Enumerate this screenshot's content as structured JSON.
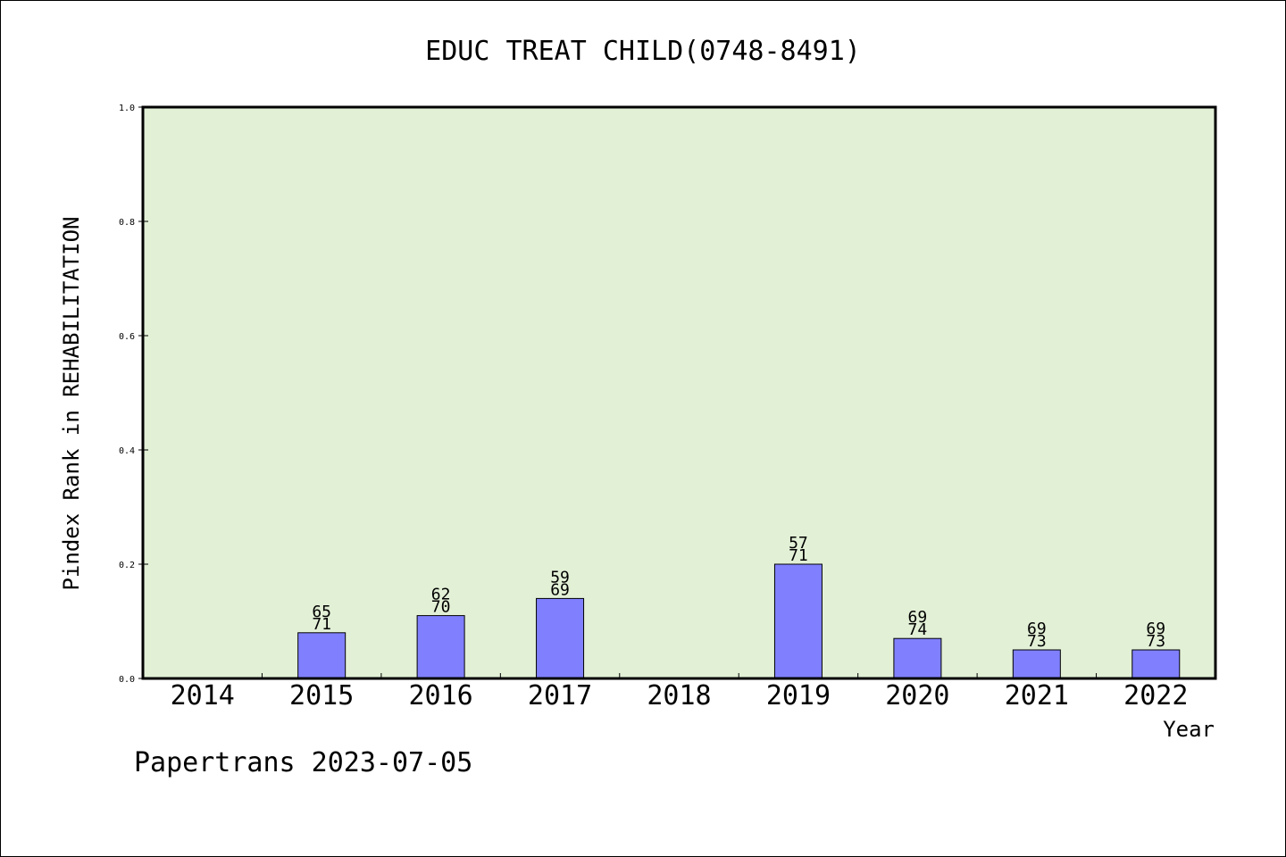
{
  "chart_data": {
    "type": "bar",
    "title": "EDUC TREAT CHILD(0748-8491)",
    "xlabel": "Year",
    "ylabel": "Pindex Rank in REHABILITATION",
    "ylim": [
      0,
      1.0
    ],
    "yticks": [
      "0.0",
      "0.2",
      "0.4",
      "0.6",
      "0.8",
      "1.0"
    ],
    "grid": false,
    "categories": [
      "2014",
      "2015",
      "2016",
      "2017",
      "2018",
      "2019",
      "2020",
      "2021",
      "2022"
    ],
    "values": [
      0,
      0.08,
      0.11,
      0.14,
      0,
      0.2,
      0.07,
      0.05,
      0.05
    ],
    "labels_top": [
      "",
      "65",
      "62",
      "59",
      "",
      "57",
      "69",
      "69",
      "69"
    ],
    "labels_bottom": [
      "",
      "71",
      "70",
      "69",
      "",
      "71",
      "74",
      "73",
      "73"
    ],
    "colors": {
      "plot_background": "#e2f0d6",
      "bar_fill": "#8080ff",
      "axis": "#000000"
    }
  },
  "footer": "Papertrans 2023-07-05"
}
